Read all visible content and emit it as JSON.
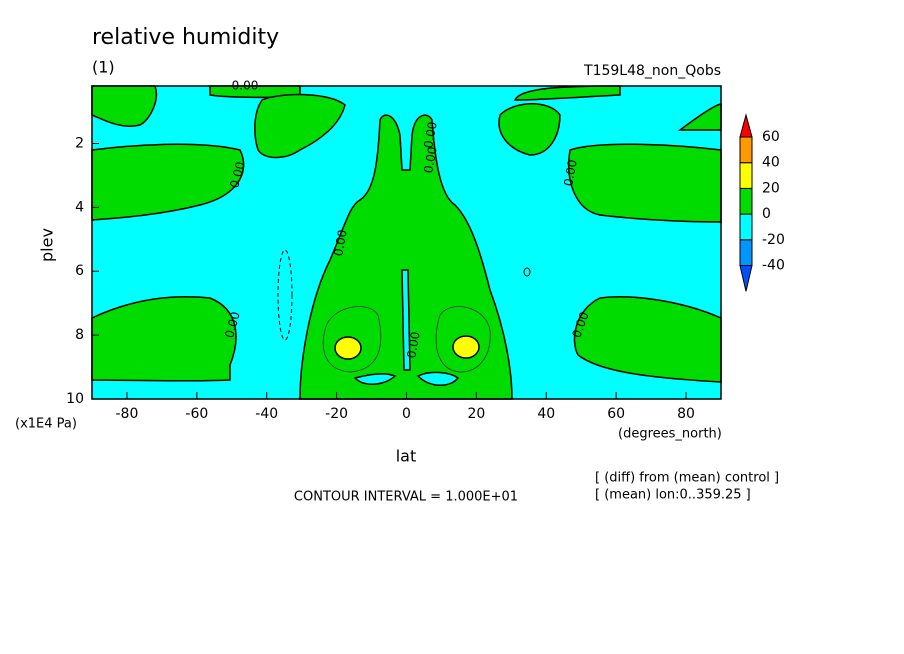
{
  "chart_data": {
    "type": "contour",
    "title": "relative humidity",
    "subtitle": "(1)",
    "run_label": "T159L48_non_Qobs",
    "xlabel": "lat",
    "ylabel": "plev",
    "x_unit": "(degrees_north)",
    "y_unit": "(x1E4 Pa)",
    "xlim": [
      -90,
      90
    ],
    "ylim": [
      10,
      0.2
    ],
    "xticks": [
      -80,
      -60,
      -40,
      -20,
      0,
      20,
      40,
      60,
      80
    ],
    "yticks": [
      2,
      4,
      6,
      8,
      10
    ],
    "colorbar": {
      "levels": [
        -40,
        -20,
        0,
        20,
        40,
        60
      ],
      "colors": [
        "#0050ff",
        "#0096ff",
        "#00ffff",
        "#00dc00",
        "#ffff00",
        "#ff9900",
        "#ff0000"
      ]
    },
    "contour_labels": [
      "0.00",
      "0.00",
      "0.00",
      "0.00",
      "0.00",
      "0.00",
      "0.00",
      "0.00",
      "0.00"
    ],
    "contour_interval": "CONTOUR INTERVAL = 1.000E+01",
    "notes": [
      "[ (diff) from (mean) control ]",
      "[ (mean) lon:0..359.25 ]"
    ]
  }
}
